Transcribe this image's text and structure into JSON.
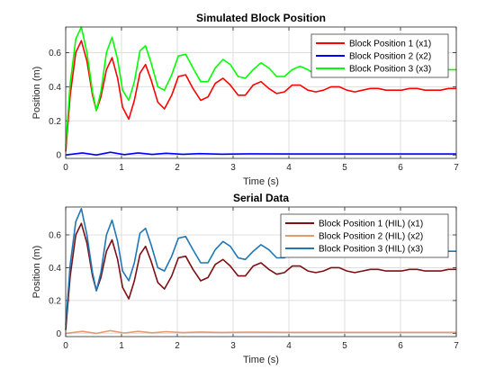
{
  "chart_data": [
    {
      "type": "line",
      "title": "Simulated Block Position",
      "xlabel": "Time (s)",
      "ylabel": "Position (m)",
      "xlim": [
        0,
        7
      ],
      "ylim": [
        -0.02,
        0.75
      ],
      "xticks": [
        "0",
        "1",
        "2",
        "3",
        "4",
        "5",
        "6",
        "7"
      ],
      "yticks": [
        "0",
        "0.2",
        "0.4",
        "0.6"
      ],
      "grid": true,
      "legend_position": "top-right",
      "series": [
        {
          "name": "Block Position 1 (x1)",
          "color": "#ff0000",
          "x": [
            0,
            0.08,
            0.18,
            0.28,
            0.38,
            0.48,
            0.55,
            0.63,
            0.73,
            0.83,
            0.93,
            1.02,
            1.13,
            1.23,
            1.33,
            1.43,
            1.53,
            1.65,
            1.77,
            1.9,
            2.02,
            2.15,
            2.28,
            2.42,
            2.55,
            2.68,
            2.82,
            2.95,
            3.09,
            3.22,
            3.36,
            3.5,
            3.64,
            3.78,
            3.92,
            4.06,
            4.2,
            4.34,
            4.48,
            4.62,
            4.76,
            4.9,
            5.04,
            5.18,
            5.32,
            5.46,
            5.6,
            5.74,
            5.88,
            6.02,
            6.16,
            6.3,
            6.44,
            6.58,
            6.72,
            6.86,
            7.0
          ],
          "y": [
            0.02,
            0.35,
            0.6,
            0.67,
            0.55,
            0.35,
            0.26,
            0.34,
            0.5,
            0.57,
            0.45,
            0.28,
            0.21,
            0.32,
            0.48,
            0.53,
            0.44,
            0.31,
            0.27,
            0.35,
            0.46,
            0.47,
            0.39,
            0.32,
            0.34,
            0.42,
            0.45,
            0.41,
            0.35,
            0.35,
            0.41,
            0.43,
            0.39,
            0.36,
            0.37,
            0.41,
            0.41,
            0.38,
            0.37,
            0.38,
            0.4,
            0.4,
            0.38,
            0.37,
            0.38,
            0.39,
            0.39,
            0.38,
            0.38,
            0.38,
            0.39,
            0.39,
            0.38,
            0.38,
            0.38,
            0.39,
            0.39
          ]
        },
        {
          "name": "Block Position 2 (x2)",
          "color": "#0000ff",
          "x": [
            0,
            0.3,
            0.55,
            0.8,
            1.05,
            1.3,
            1.55,
            1.8,
            2.1,
            2.4,
            2.8,
            3.3,
            4.0,
            5.0,
            6.0,
            7.0
          ],
          "y": [
            0.0,
            0.012,
            0.0,
            0.016,
            0.002,
            0.012,
            0.003,
            0.01,
            0.004,
            0.008,
            0.005,
            0.007,
            0.006,
            0.006,
            0.006,
            0.006
          ]
        },
        {
          "name": "Block Position 3 (x3)",
          "color": "#00ff00",
          "x": [
            0,
            0.08,
            0.18,
            0.28,
            0.38,
            0.48,
            0.55,
            0.63,
            0.73,
            0.83,
            0.93,
            1.02,
            1.13,
            1.23,
            1.33,
            1.43,
            1.53,
            1.65,
            1.77,
            1.9,
            2.02,
            2.15,
            2.28,
            2.42,
            2.55,
            2.68,
            2.82,
            2.95,
            3.09,
            3.22,
            3.36,
            3.5,
            3.64,
            3.78,
            3.92,
            4.06,
            4.2,
            4.34,
            4.48,
            4.62,
            4.76,
            4.9,
            5.04,
            5.18,
            5.32,
            5.46,
            5.6,
            5.74,
            5.88,
            6.02,
            6.16,
            6.3,
            6.44,
            6.58,
            6.72,
            6.86,
            7.0
          ],
          "y": [
            0.05,
            0.42,
            0.68,
            0.75,
            0.6,
            0.37,
            0.26,
            0.37,
            0.6,
            0.69,
            0.56,
            0.38,
            0.32,
            0.43,
            0.61,
            0.64,
            0.54,
            0.4,
            0.38,
            0.47,
            0.58,
            0.59,
            0.51,
            0.43,
            0.43,
            0.51,
            0.56,
            0.53,
            0.46,
            0.45,
            0.5,
            0.54,
            0.51,
            0.46,
            0.46,
            0.5,
            0.52,
            0.5,
            0.47,
            0.47,
            0.5,
            0.51,
            0.49,
            0.48,
            0.48,
            0.5,
            0.5,
            0.49,
            0.48,
            0.48,
            0.49,
            0.5,
            0.49,
            0.49,
            0.49,
            0.5,
            0.5
          ]
        }
      ]
    },
    {
      "type": "line",
      "title": "Serial Data",
      "xlabel": "Time (s)",
      "ylabel": "Position (m)",
      "xlim": [
        0,
        7
      ],
      "ylim": [
        -0.02,
        0.77
      ],
      "xticks": [
        "0",
        "1",
        "2",
        "3",
        "4",
        "5",
        "6",
        "7"
      ],
      "yticks": [
        "0",
        "0.2",
        "0.4",
        "0.6"
      ],
      "grid": true,
      "legend_position": "top-right",
      "series": [
        {
          "name": "Block Position 1 (HIL) (x1)",
          "color": "#7e0f15",
          "x": [
            0,
            0.08,
            0.18,
            0.28,
            0.38,
            0.48,
            0.55,
            0.63,
            0.73,
            0.83,
            0.93,
            1.02,
            1.13,
            1.23,
            1.33,
            1.43,
            1.53,
            1.65,
            1.77,
            1.9,
            2.02,
            2.15,
            2.28,
            2.42,
            2.55,
            2.68,
            2.82,
            2.95,
            3.09,
            3.22,
            3.36,
            3.5,
            3.64,
            3.78,
            3.92,
            4.06,
            4.2,
            4.34,
            4.48,
            4.62,
            4.76,
            4.9,
            5.04,
            5.18,
            5.32,
            5.46,
            5.6,
            5.74,
            5.88,
            6.02,
            6.16,
            6.3,
            6.44,
            6.58,
            6.72,
            6.86,
            7.0
          ],
          "y": [
            0.02,
            0.35,
            0.6,
            0.67,
            0.55,
            0.35,
            0.26,
            0.34,
            0.5,
            0.57,
            0.45,
            0.28,
            0.21,
            0.32,
            0.48,
            0.53,
            0.44,
            0.31,
            0.27,
            0.35,
            0.46,
            0.47,
            0.39,
            0.32,
            0.34,
            0.42,
            0.45,
            0.41,
            0.35,
            0.35,
            0.41,
            0.43,
            0.39,
            0.36,
            0.37,
            0.41,
            0.41,
            0.38,
            0.37,
            0.38,
            0.4,
            0.4,
            0.38,
            0.37,
            0.38,
            0.39,
            0.39,
            0.38,
            0.38,
            0.38,
            0.39,
            0.39,
            0.38,
            0.38,
            0.38,
            0.39,
            0.39
          ]
        },
        {
          "name": "Block Position 2 (HIL) (x2)",
          "color": "#e69a6e",
          "x": [
            0,
            0.3,
            0.55,
            0.8,
            1.05,
            1.3,
            1.55,
            1.8,
            2.1,
            2.4,
            2.8,
            3.3,
            4.0,
            5.0,
            6.0,
            7.0
          ],
          "y": [
            0.0,
            0.012,
            0.0,
            0.016,
            0.002,
            0.012,
            0.003,
            0.01,
            0.004,
            0.008,
            0.005,
            0.007,
            0.006,
            0.006,
            0.006,
            0.006
          ]
        },
        {
          "name": "Block Position 3 (HIL) (x3)",
          "color": "#1f77b4",
          "x": [
            0,
            0.08,
            0.18,
            0.28,
            0.38,
            0.48,
            0.55,
            0.63,
            0.73,
            0.83,
            0.93,
            1.02,
            1.13,
            1.23,
            1.33,
            1.43,
            1.53,
            1.65,
            1.77,
            1.9,
            2.02,
            2.15,
            2.28,
            2.42,
            2.55,
            2.68,
            2.82,
            2.95,
            3.09,
            3.22,
            3.36,
            3.5,
            3.64,
            3.78,
            3.92,
            4.06,
            4.2,
            4.34,
            4.48,
            4.62,
            4.76,
            4.9,
            5.04,
            5.18,
            5.32,
            5.46,
            5.6,
            5.74,
            5.88,
            6.02,
            6.16,
            6.3,
            6.44,
            6.58,
            6.72,
            6.86,
            7.0
          ],
          "y": [
            0.05,
            0.42,
            0.68,
            0.76,
            0.6,
            0.37,
            0.26,
            0.37,
            0.6,
            0.69,
            0.56,
            0.38,
            0.32,
            0.43,
            0.61,
            0.64,
            0.54,
            0.4,
            0.38,
            0.47,
            0.58,
            0.59,
            0.51,
            0.43,
            0.43,
            0.51,
            0.56,
            0.53,
            0.46,
            0.45,
            0.5,
            0.54,
            0.51,
            0.46,
            0.46,
            0.5,
            0.52,
            0.5,
            0.47,
            0.47,
            0.5,
            0.51,
            0.49,
            0.48,
            0.48,
            0.5,
            0.5,
            0.49,
            0.48,
            0.48,
            0.49,
            0.5,
            0.49,
            0.49,
            0.49,
            0.5,
            0.5
          ]
        }
      ]
    }
  ]
}
